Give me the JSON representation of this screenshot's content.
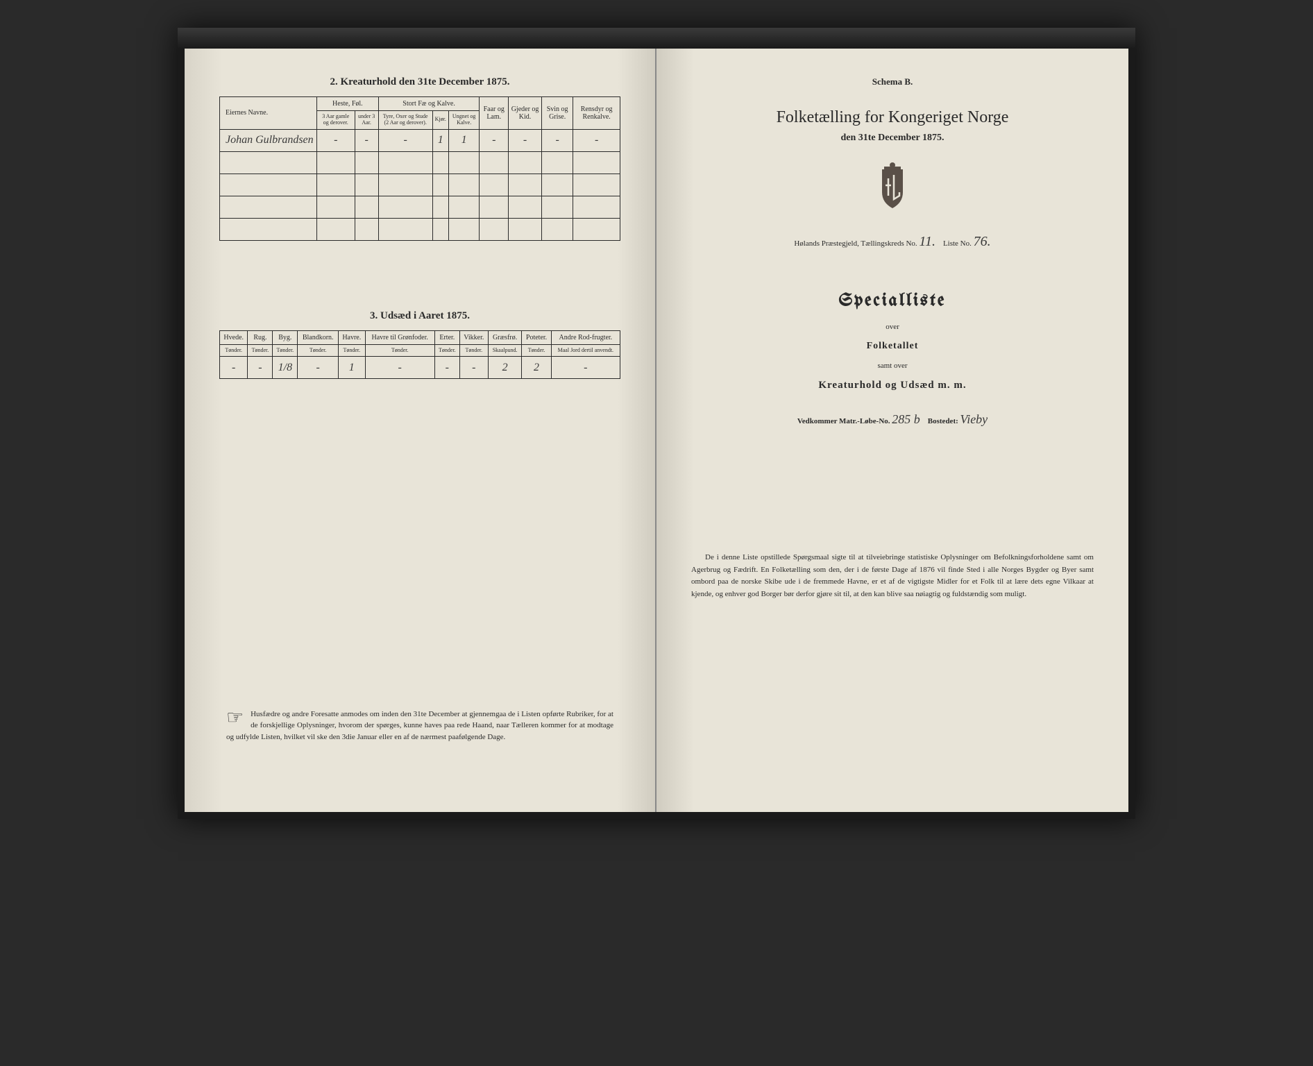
{
  "leftPage": {
    "section2": {
      "title": "2. Kreaturhold den 31te December 1875.",
      "headers": {
        "name": "Eiernes Navne.",
        "horses": "Heste, Føl.",
        "horses_sub1": "3 Aar gamle og derover.",
        "horses_sub2": "under 3 Aar.",
        "cattle": "Stort Fæ og Kalve.",
        "cattle_sub1": "Tyre, Oxer og Stude (2 Aar og derover).",
        "cattle_sub2": "Kjør.",
        "cattle_sub3": "Ungnet og Kalve.",
        "sheep": "Faar og Lam.",
        "goats": "Gjeder og Kid.",
        "pigs": "Svin og Grise.",
        "reindeer": "Rensdyr og Renkalve."
      },
      "rows": [
        {
          "name": "Johan Gulbrandsen",
          "v": [
            "-",
            "-",
            "-",
            "1",
            "1",
            "-",
            "-",
            "-",
            "-"
          ]
        },
        {
          "name": "",
          "v": [
            "",
            "",
            "",
            "",
            "",
            "",
            "",
            "",
            ""
          ]
        },
        {
          "name": "",
          "v": [
            "",
            "",
            "",
            "",
            "",
            "",
            "",
            "",
            ""
          ]
        },
        {
          "name": "",
          "v": [
            "",
            "",
            "",
            "",
            "",
            "",
            "",
            "",
            ""
          ]
        },
        {
          "name": "",
          "v": [
            "",
            "",
            "",
            "",
            "",
            "",
            "",
            "",
            ""
          ]
        }
      ]
    },
    "section3": {
      "title": "3. Udsæd i Aaret 1875.",
      "headers": [
        {
          "h": "Hvede.",
          "s": "Tønder."
        },
        {
          "h": "Rug.",
          "s": "Tønder."
        },
        {
          "h": "Byg.",
          "s": "Tønder."
        },
        {
          "h": "Blandkorn.",
          "s": "Tønder."
        },
        {
          "h": "Havre.",
          "s": "Tønder."
        },
        {
          "h": "Havre til Grønfoder.",
          "s": "Tønder."
        },
        {
          "h": "Erter.",
          "s": "Tønder."
        },
        {
          "h": "Vikker.",
          "s": "Tønder."
        },
        {
          "h": "Græsfrø.",
          "s": "Skaalpund."
        },
        {
          "h": "Poteter.",
          "s": "Tønder."
        },
        {
          "h": "Andre Rod-frugter.",
          "s": "Maal Jord dertil anvendt."
        }
      ],
      "values": [
        "-",
        "-",
        "1/8",
        "-",
        "1",
        "-",
        "-",
        "-",
        "2",
        "2",
        "-"
      ]
    },
    "footer": {
      "hand": "☞",
      "text": "Husfædre og andre Foresatte anmodes om inden den 31te December at gjennemgaa de i Listen opførte Rubriker, for at de forskjellige Oplysninger, hvorom der spørges, kunne haves paa rede Haand, naar Tælleren kommer for at modtage og udfylde Listen, hvilket vil ske den 3die Januar eller en af de nærmest paafølgende Dage."
    }
  },
  "rightPage": {
    "schema": "Schema B.",
    "mainTitle": "Folketælling for Kongeriget Norge",
    "subTitle": "den 31te December 1875.",
    "parish": {
      "prefix": "Hølands Præstegjeld, Tællingskreds No.",
      "kreds": "11.",
      "listePrefix": "Liste No.",
      "liste": "76."
    },
    "specialTitle": "Specialliste",
    "over": "over",
    "folketallet": "Folketallet",
    "samtOver": "samt over",
    "kreaturhold": "Kreaturhold og Udsæd m. m.",
    "matr": {
      "prefix": "Vedkommer Matr.-Løbe-No.",
      "no": "285 b",
      "bostPrefix": "Bostedet:",
      "bosted": "Vieby"
    },
    "footer": "De i denne Liste opstillede Spørgsmaal sigte til at tilveiebringe statistiske Oplysninger om Befolkningsforholdene samt om Agerbrug og Fædrift. En Folketælling som den, der i de første Dage af 1876 vil finde Sted i alle Norges Bygder og Byer samt ombord paa de norske Skibe ude i de fremmede Havne, er et af de vigtigste Midler for et Folk til at lære dets egne Vilkaar at kjende, og enhver god Borger bør derfor gjøre sit til, at den kan blive saa nøiagtig og fuldstændig som muligt."
  },
  "colors": {
    "paper": "#e8e4d8",
    "ink": "#2a2a2a",
    "crest": "#5a5048"
  }
}
